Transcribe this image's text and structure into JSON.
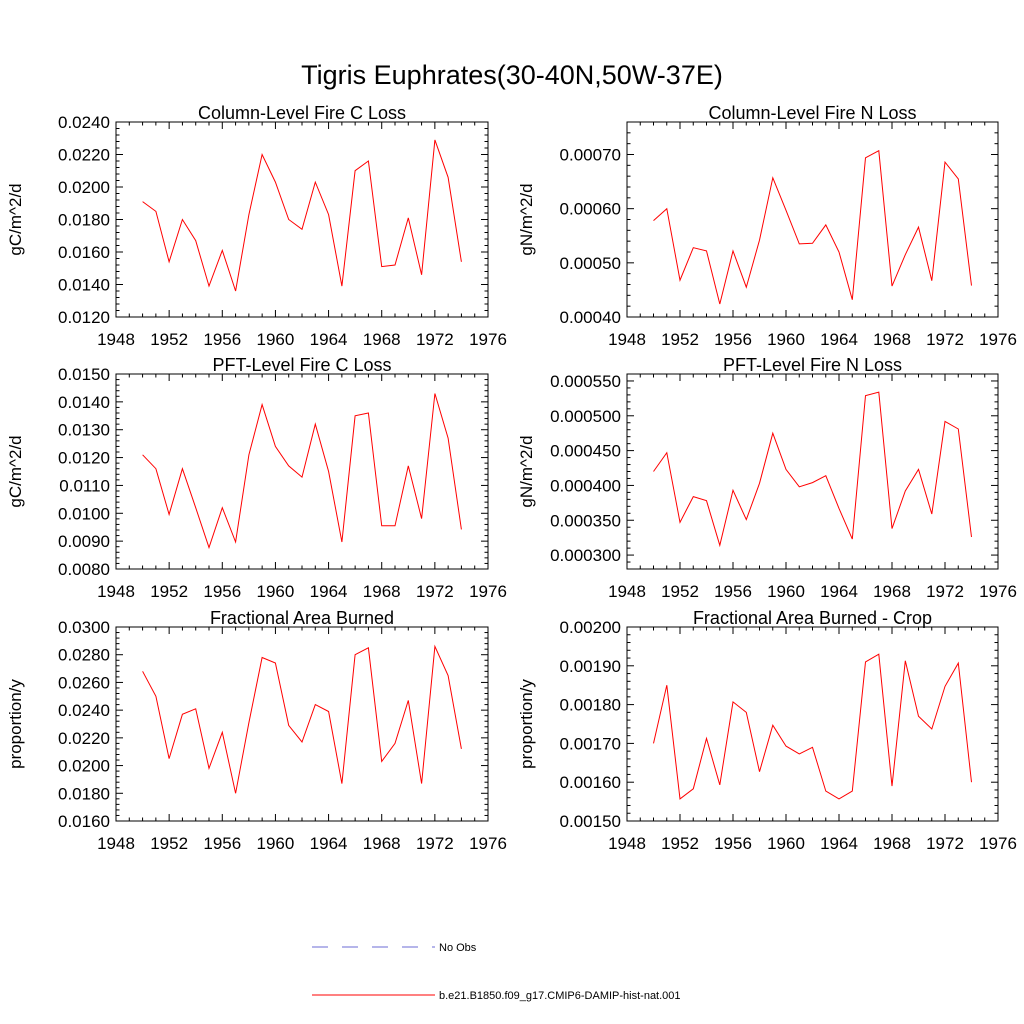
{
  "figure": {
    "title": "Tigris Euphrates(30-40N,50W-37E)"
  },
  "colors": {
    "model_line": "#ff0000",
    "obs_line": "#6b6bd6",
    "axes": "#000000",
    "background": "#ffffff"
  },
  "legend": {
    "placement": "bottom-center",
    "entries": [
      {
        "label": "No Obs",
        "style": "dashed",
        "color": "#6b6bd6"
      },
      {
        "label": "b.e21.B1850.f09_g17.CMIP6-DAMIP-hist-nat.001",
        "style": "solid",
        "color": "#ff0000"
      }
    ]
  },
  "chart_data": [
    {
      "type": "line",
      "title": "Column-Level Fire C Loss",
      "ylabel": "gC/m^2/d",
      "xlabel": "",
      "xlim": [
        1948,
        1976
      ],
      "ylim": [
        0.012,
        0.024
      ],
      "xticks": [
        "1948",
        "1952",
        "1956",
        "1960",
        "1964",
        "1968",
        "1972",
        "1976"
      ],
      "yticks": [
        "0.0120",
        "0.0140",
        "0.0160",
        "0.0180",
        "0.0200",
        "0.0220",
        "0.0240"
      ],
      "x": [
        1950,
        1951,
        1952,
        1953,
        1954,
        1955,
        1956,
        1957,
        1958,
        1959,
        1960,
        1961,
        1962,
        1963,
        1964,
        1965,
        1966,
        1967,
        1968,
        1969,
        1970,
        1971,
        1972,
        1973,
        1974
      ],
      "series": [
        {
          "name": "b.e21.B1850.f09_g17.CMIP6-DAMIP-hist-nat.001",
          "values": [
            0.0191,
            0.0185,
            0.0154,
            0.018,
            0.0167,
            0.0139,
            0.0161,
            0.0136,
            0.0183,
            0.022,
            0.0203,
            0.018,
            0.0174,
            0.0203,
            0.0183,
            0.0139,
            0.021,
            0.0216,
            0.0151,
            0.0152,
            0.0181,
            0.0146,
            0.0229,
            0.0206,
            0.0154
          ]
        }
      ],
      "grid": false
    },
    {
      "type": "line",
      "title": "Column-Level Fire N Loss",
      "ylabel": "gN/m^2/d",
      "xlabel": "",
      "xlim": [
        1948,
        1976
      ],
      "ylim": [
        0.0004,
        0.00076
      ],
      "xticks": [
        "1948",
        "1952",
        "1956",
        "1960",
        "1964",
        "1968",
        "1972",
        "1976"
      ],
      "yticks": [
        "0.00040",
        "0.00050",
        "0.00060",
        "0.00070"
      ],
      "x": [
        1950,
        1951,
        1952,
        1953,
        1954,
        1955,
        1956,
        1957,
        1958,
        1959,
        1960,
        1961,
        1962,
        1963,
        1964,
        1965,
        1966,
        1967,
        1968,
        1969,
        1970,
        1971,
        1972,
        1973,
        1974
      ],
      "series": [
        {
          "name": "b.e21.B1850.f09_g17.CMIP6-DAMIP-hist-nat.001",
          "values": [
            0.000578,
            0.0006,
            0.000468,
            0.000528,
            0.000522,
            0.000424,
            0.000522,
            0.000455,
            0.000542,
            0.000657,
            0.000597,
            0.000535,
            0.000536,
            0.00057,
            0.00052,
            0.000432,
            0.000694,
            0.000707,
            0.000457,
            0.000515,
            0.000566,
            0.000467,
            0.000686,
            0.000655,
            0.000458
          ]
        }
      ],
      "grid": false
    },
    {
      "type": "line",
      "title": "PFT-Level Fire C Loss",
      "ylabel": "gC/m^2/d",
      "xlabel": "",
      "xlim": [
        1948,
        1976
      ],
      "ylim": [
        0.008,
        0.015
      ],
      "xticks": [
        "1948",
        "1952",
        "1956",
        "1960",
        "1964",
        "1968",
        "1972",
        "1976"
      ],
      "yticks": [
        "0.0080",
        "0.0090",
        "0.0100",
        "0.0110",
        "0.0120",
        "0.0130",
        "0.0140",
        "0.0150"
      ],
      "x": [
        1950,
        1951,
        1952,
        1953,
        1954,
        1955,
        1956,
        1957,
        1958,
        1959,
        1960,
        1961,
        1962,
        1963,
        1964,
        1965,
        1966,
        1967,
        1968,
        1969,
        1970,
        1971,
        1972,
        1973,
        1974
      ],
      "series": [
        {
          "name": "b.e21.B1850.f09_g17.CMIP6-DAMIP-hist-nat.001",
          "values": [
            0.0121,
            0.0116,
            0.00996,
            0.0116,
            0.0102,
            0.00877,
            0.0102,
            0.00897,
            0.0121,
            0.0139,
            0.0124,
            0.0117,
            0.0113,
            0.0132,
            0.0115,
            0.00897,
            0.0135,
            0.0136,
            0.00955,
            0.00955,
            0.0117,
            0.00981,
            0.0143,
            0.0127,
            0.00942
          ]
        }
      ],
      "grid": false
    },
    {
      "type": "line",
      "title": "PFT-Level Fire N Loss",
      "ylabel": "gN/m^2/d",
      "xlabel": "",
      "xlim": [
        1948,
        1976
      ],
      "ylim": [
        0.00028,
        0.00056
      ],
      "xticks": [
        "1948",
        "1952",
        "1956",
        "1960",
        "1964",
        "1968",
        "1972",
        "1976"
      ],
      "yticks": [
        "0.000300",
        "0.000350",
        "0.000400",
        "0.000450",
        "0.000500",
        "0.000550"
      ],
      "x": [
        1950,
        1951,
        1952,
        1953,
        1954,
        1955,
        1956,
        1957,
        1958,
        1959,
        1960,
        1961,
        1962,
        1963,
        1964,
        1965,
        1966,
        1967,
        1968,
        1969,
        1970,
        1971,
        1972,
        1973,
        1974
      ],
      "series": [
        {
          "name": "b.e21.B1850.f09_g17.CMIP6-DAMIP-hist-nat.001",
          "values": [
            0.00042,
            0.000447,
            0.000347,
            0.000384,
            0.000378,
            0.000314,
            0.000393,
            0.000351,
            0.000403,
            0.000475,
            0.000423,
            0.000398,
            0.000404,
            0.000414,
            0.000367,
            0.000323,
            0.000529,
            0.000534,
            0.000338,
            0.000392,
            0.000423,
            0.000359,
            0.000492,
            0.000481,
            0.000326
          ]
        }
      ],
      "grid": false
    },
    {
      "type": "line",
      "title": "Fractional Area Burned",
      "ylabel": "proportion/y",
      "xlabel": "",
      "xlim": [
        1948,
        1976
      ],
      "ylim": [
        0.016,
        0.03
      ],
      "xticks": [
        "1948",
        "1952",
        "1956",
        "1960",
        "1964",
        "1968",
        "1972",
        "1976"
      ],
      "yticks": [
        "0.0160",
        "0.0180",
        "0.0200",
        "0.0220",
        "0.0240",
        "0.0260",
        "0.0280",
        "0.0300"
      ],
      "x": [
        1950,
        1951,
        1952,
        1953,
        1954,
        1955,
        1956,
        1957,
        1958,
        1959,
        1960,
        1961,
        1962,
        1963,
        1964,
        1965,
        1966,
        1967,
        1968,
        1969,
        1970,
        1971,
        1972,
        1973,
        1974
      ],
      "series": [
        {
          "name": "b.e21.B1850.f09_g17.CMIP6-DAMIP-hist-nat.001",
          "values": [
            0.0268,
            0.025,
            0.0205,
            0.0237,
            0.0241,
            0.0198,
            0.0224,
            0.018,
            0.0231,
            0.0278,
            0.0274,
            0.0229,
            0.0217,
            0.0244,
            0.0239,
            0.0187,
            0.028,
            0.0285,
            0.0203,
            0.0216,
            0.0247,
            0.0187,
            0.0286,
            0.0265,
            0.0212
          ]
        }
      ],
      "grid": false
    },
    {
      "type": "line",
      "title": "Fractional Area Burned - Crop",
      "ylabel": "proportion/y",
      "xlabel": "",
      "xlim": [
        1948,
        1976
      ],
      "ylim": [
        0.0015,
        0.002
      ],
      "xticks": [
        "1948",
        "1952",
        "1956",
        "1960",
        "1964",
        "1968",
        "1972",
        "1976"
      ],
      "yticks": [
        "0.00150",
        "0.00160",
        "0.00170",
        "0.00180",
        "0.00190",
        "0.00200"
      ],
      "x": [
        1950,
        1951,
        1952,
        1953,
        1954,
        1955,
        1956,
        1957,
        1958,
        1959,
        1960,
        1961,
        1962,
        1963,
        1964,
        1965,
        1966,
        1967,
        1968,
        1969,
        1970,
        1971,
        1972,
        1973,
        1974
      ],
      "series": [
        {
          "name": "b.e21.B1850.f09_g17.CMIP6-DAMIP-hist-nat.001",
          "values": [
            0.0017,
            0.00185,
            0.001557,
            0.001583,
            0.001713,
            0.001593,
            0.001807,
            0.00178,
            0.001627,
            0.001747,
            0.001693,
            0.001673,
            0.00169,
            0.001577,
            0.001557,
            0.001577,
            0.00191,
            0.00193,
            0.00159,
            0.001913,
            0.00177,
            0.001737,
            0.001847,
            0.001907,
            0.0016
          ]
        }
      ],
      "grid": false
    }
  ]
}
